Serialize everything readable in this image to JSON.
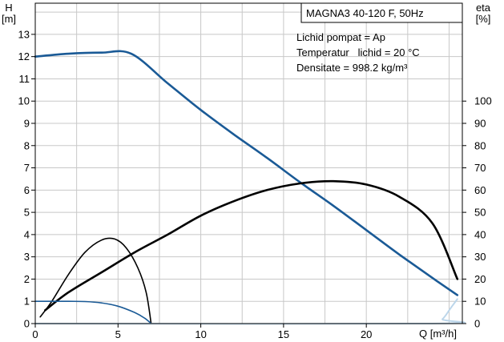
{
  "chart_data": {
    "type": "line",
    "title": "MAGNA3 40-120 F, 50Hz",
    "info_lines": [
      "Lichid pompat = Ap",
      "Temperatur   lichid = 20 °C",
      "Densitate = 998.2 kg/m³"
    ],
    "y_left_label": [
      "H",
      "[m]"
    ],
    "y_right_label": [
      "eta",
      "[%]"
    ],
    "x_label": "Q [m³/h]",
    "x_ticks": [
      0,
      5,
      10,
      15,
      20
    ],
    "y_left_ticks": [
      0,
      1,
      2,
      3,
      4,
      5,
      6,
      7,
      8,
      9,
      10,
      11,
      12,
      13
    ],
    "y_right_ticks": [
      0,
      10,
      20,
      30,
      40,
      50,
      60,
      70,
      80,
      90,
      100
    ],
    "xlim": [
      0,
      25.8
    ],
    "ylim_left": [
      0,
      14.4
    ],
    "ylim_right": [
      0,
      144
    ],
    "grid": true,
    "series": [
      {
        "color": "#1a5a96",
        "width": 2.6,
        "axis": "left",
        "points": [
          [
            0,
            12.0
          ],
          [
            2,
            12.13
          ],
          [
            4,
            12.18
          ],
          [
            5.8,
            12.13
          ],
          [
            8,
            10.8
          ],
          [
            10,
            9.6
          ],
          [
            12,
            8.5
          ],
          [
            14,
            7.45
          ],
          [
            16,
            6.35
          ],
          [
            18,
            5.3
          ],
          [
            20,
            4.2
          ],
          [
            22,
            3.1
          ],
          [
            24,
            2.05
          ],
          [
            25.5,
            1.28
          ]
        ]
      },
      {
        "color": "#000000",
        "width": 2.6,
        "axis": "right",
        "points": [
          [
            0.6,
            6
          ],
          [
            2,
            14
          ],
          [
            4,
            23
          ],
          [
            6,
            32
          ],
          [
            8,
            40
          ],
          [
            10,
            48.5
          ],
          [
            12,
            55
          ],
          [
            14,
            60
          ],
          [
            16,
            63
          ],
          [
            18,
            64
          ],
          [
            20,
            62.5
          ],
          [
            22,
            57
          ],
          [
            24,
            45
          ],
          [
            25.5,
            20
          ]
        ]
      },
      {
        "color": "#000000",
        "width": 1.6,
        "axis": "right",
        "points": [
          [
            0.3,
            3
          ],
          [
            1,
            10
          ],
          [
            2,
            22
          ],
          [
            3,
            32
          ],
          [
            4,
            37.5
          ],
          [
            4.8,
            38
          ],
          [
            5.5,
            34
          ],
          [
            6.2,
            25
          ],
          [
            6.7,
            14
          ],
          [
            7.0,
            0
          ]
        ]
      },
      {
        "color": "#1a5a96",
        "width": 1.6,
        "axis": "left",
        "points": [
          [
            0,
            1.0
          ],
          [
            2,
            1.0
          ],
          [
            3,
            0.99
          ],
          [
            4,
            0.93
          ],
          [
            5,
            0.78
          ],
          [
            6,
            0.5
          ],
          [
            6.6,
            0.25
          ],
          [
            7.0,
            0
          ]
        ]
      },
      {
        "color": "#bcd6ea",
        "width": 2,
        "axis": "left",
        "points": [
          [
            0,
            0
          ],
          [
            24,
            0
          ],
          [
            24.6,
            0.2
          ],
          [
            25.1,
            0.7
          ],
          [
            25.5,
            1.1
          ]
        ]
      }
    ]
  }
}
